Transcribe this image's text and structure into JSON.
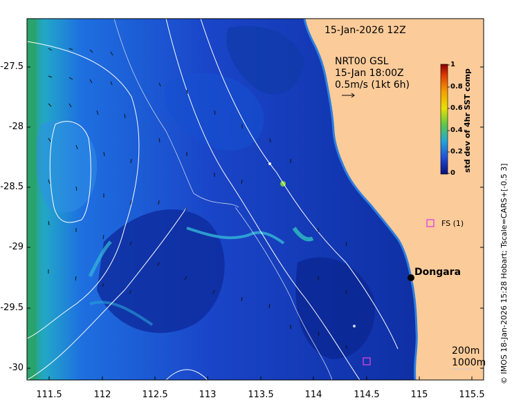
{
  "map": {
    "timestamp": "15-Jan-2026 12Z",
    "current_model": "NRT00 GSL",
    "current_time": "15-Jan 18:00Z",
    "current_scale": "0.5m/s (1kt 6h)",
    "place_label": "Dongara",
    "station_label": "FS (1)",
    "contour_labels": [
      "200m",
      "1000m"
    ],
    "credit": "© IMOS 18-Jan-2026 15:28 Hobart; Tscale=CARS+[-0.5 3]",
    "colors": {
      "land": "#fbcb9a",
      "ocean_low": "#0a1f8f",
      "ocean_mid": "#1e5fd8",
      "ocean_high": "#2fa3e0"
    }
  },
  "axes": {
    "x_ticks": [
      "111.5",
      "112",
      "112.5",
      "113",
      "113.5",
      "114",
      "114.5",
      "115",
      "115.5"
    ],
    "y_ticks": [
      "-27.5",
      "-28",
      "-28.5",
      "-29",
      "-29.5",
      "-30"
    ]
  },
  "colorbar": {
    "title": "std dev of 4hr SST comp",
    "ticks": [
      "1",
      "0.8",
      "0.6",
      "0.4",
      "0.2",
      "0"
    ],
    "colors": [
      "#8b0000",
      "#e03a00",
      "#f5a000",
      "#e8e000",
      "#5cc84a",
      "#22a6d8",
      "#1f4fd8",
      "#08107a"
    ]
  }
}
